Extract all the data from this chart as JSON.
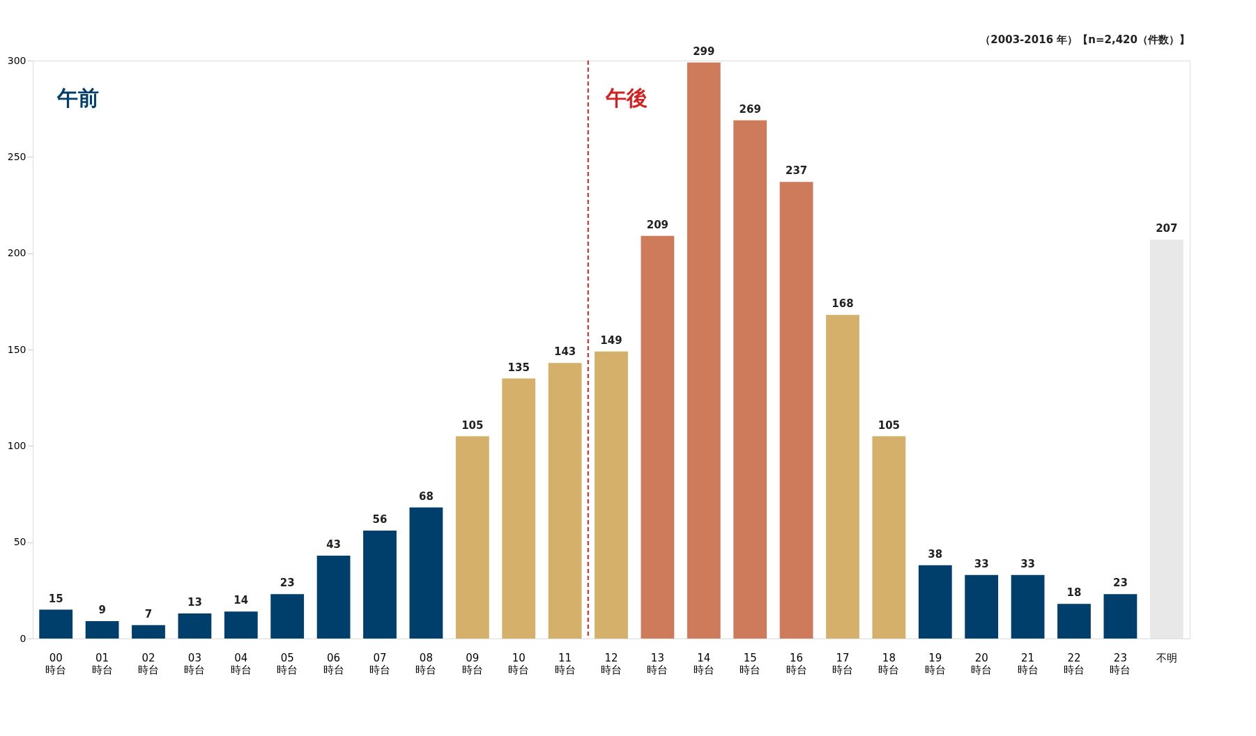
{
  "chart_data": {
    "type": "bar",
    "subtitle": "（2003-2016 年）【n=2,420（件数）】",
    "categories": [
      "00\n時台",
      "01\n時台",
      "02\n時台",
      "03\n時台",
      "04\n時台",
      "05\n時台",
      "06\n時台",
      "07\n時台",
      "08\n時台",
      "09\n時台",
      "10\n時台",
      "11\n時台",
      "12\n時台",
      "13\n時台",
      "14\n時台",
      "15\n時台",
      "16\n時台",
      "17\n時台",
      "18\n時台",
      "19\n時台",
      "20\n時台",
      "21\n時台",
      "22\n時台",
      "23\n時台",
      "不明"
    ],
    "values": [
      15,
      9,
      7,
      13,
      14,
      23,
      43,
      56,
      68,
      105,
      135,
      143,
      149,
      209,
      299,
      269,
      237,
      168,
      105,
      38,
      33,
      33,
      18,
      23,
      207
    ],
    "colors": [
      "#003f6b",
      "#003f6b",
      "#003f6b",
      "#003f6b",
      "#003f6b",
      "#003f6b",
      "#003f6b",
      "#003f6b",
      "#003f6b",
      "#d4b06a",
      "#d4b06a",
      "#d4b06a",
      "#d4b06a",
      "#cd7b5a",
      "#cd7b5a",
      "#cd7b5a",
      "#cd7b5a",
      "#d4b06a",
      "#d4b06a",
      "#003f6b",
      "#003f6b",
      "#003f6b",
      "#003f6b",
      "#003f6b",
      "#e8e8e8"
    ],
    "ylim": [
      0,
      300
    ],
    "yticks": [
      0,
      50,
      100,
      150,
      200,
      250,
      300
    ],
    "grid": false,
    "data_labels": true,
    "ref_lines": [
      {
        "axis": "x",
        "value": "12\n時台",
        "label": "午後",
        "color": "#d42020",
        "line_style": "dashed"
      }
    ],
    "annotations": [
      "午前"
    ]
  }
}
